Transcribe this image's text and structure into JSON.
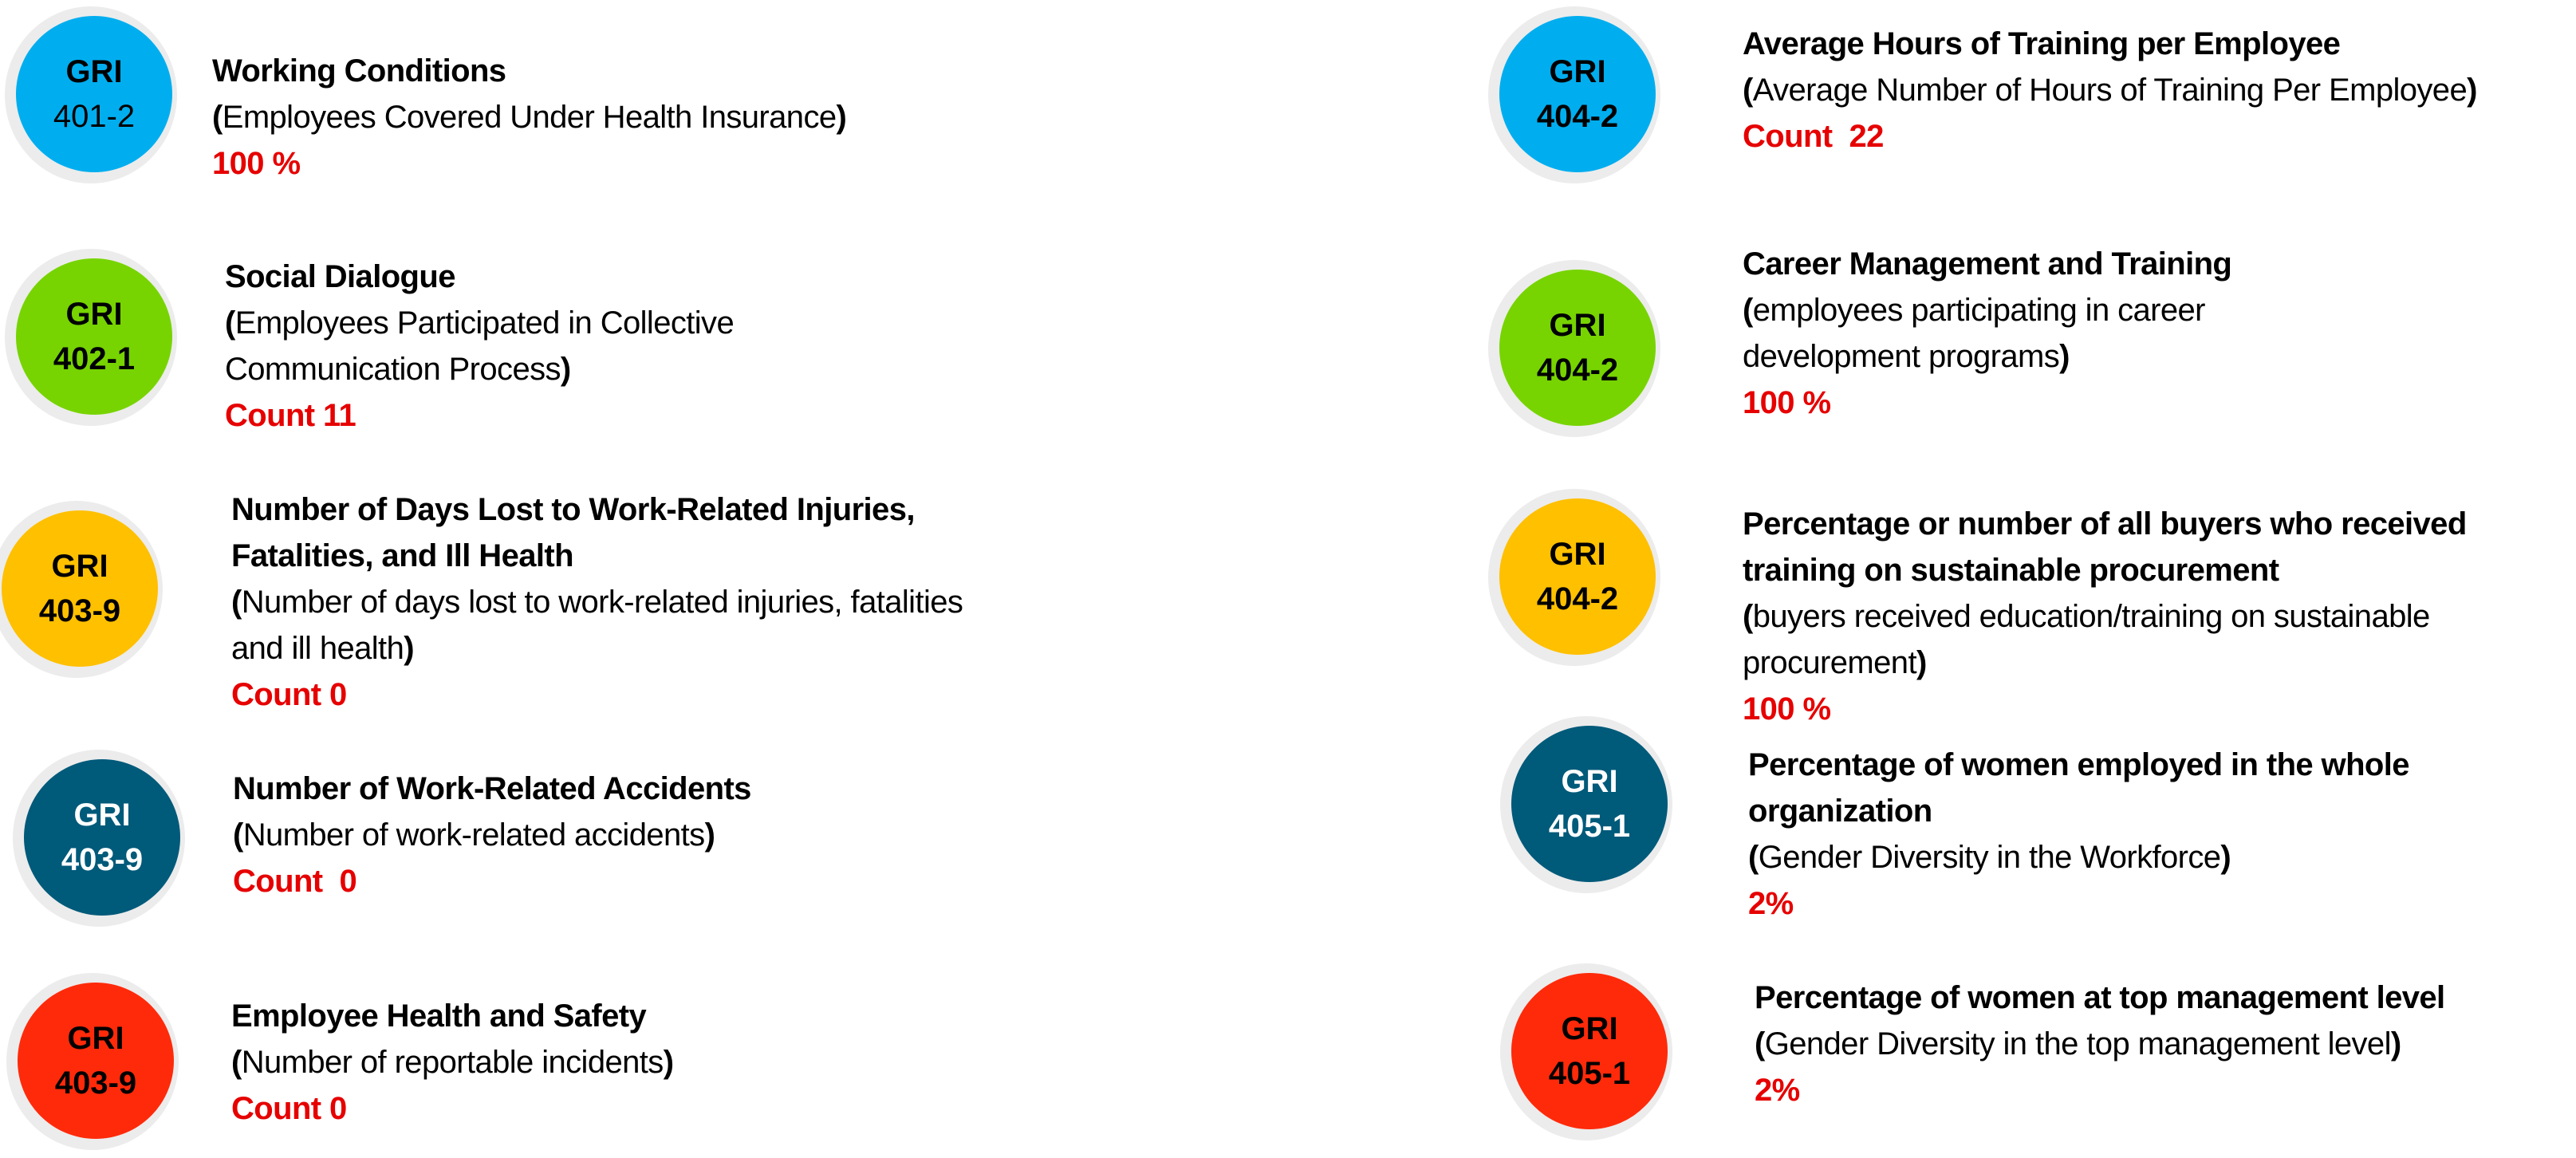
{
  "items": [
    {
      "code_prefix": "GRI",
      "code": "401-2",
      "color": "#00aeef",
      "code_color": "#000000",
      "title": "Working Conditions",
      "description": "(Employees Covered Under Health Insurance)",
      "value": "100 %"
    },
    {
      "code_prefix": "GRI",
      "code": "402-1",
      "color": "#77d400",
      "code_color": "#000000",
      "title": "Social Dialogue",
      "description": "(Employees Participated in Collective Communication Process)",
      "value": "Count 11"
    },
    {
      "code_prefix": "GRI",
      "code": "403-9",
      "color": "#ffc000",
      "code_color": "#000000",
      "title": "Number of Days Lost to Work-Related Injuries, Fatalities, and Ill Health",
      "description": "(Number of days lost to work-related injuries, fatalities and ill health)",
      "value": "Count 0"
    },
    {
      "code_prefix": "GRI",
      "code": "403-9",
      "color": "#005a7a",
      "code_color": "#ffffff",
      "title": "Number of Work-Related Accidents",
      "description": "(Number of work-related accidents)",
      "value": "Count  0"
    },
    {
      "code_prefix": "GRI",
      "code": "403-9",
      "color": "#ff2a0a",
      "code_color": "#000000",
      "title": "Employee Health and Safety",
      "description": "(Number of reportable incidents)",
      "value": "Count 0"
    },
    {
      "code_prefix": "GRI",
      "code": "404-2",
      "color": "#00aeef",
      "code_color": "#000000",
      "title": "Average Hours of Training per Employee",
      "description": "(Average Number of Hours of Training Per Employee)",
      "value": "Count  22"
    },
    {
      "code_prefix": "GRI",
      "code": "404-2",
      "color": "#77d400",
      "code_color": "#000000",
      "title": "Career Management and Training",
      "description": "(employees participating in career development programs)",
      "value": "100 %"
    },
    {
      "code_prefix": "GRI",
      "code": "404-2",
      "color": "#ffc000",
      "code_color": "#000000",
      "title": "Percentage or number of all buyers who received training on sustainable procurement",
      "description": "(buyers received education/training on sustainable procurement)",
      "value": "100 %"
    },
    {
      "code_prefix": "GRI",
      "code": "405-1",
      "color": "#005a7a",
      "code_color": "#ffffff",
      "title": "Percentage of women employed in the whole organization",
      "description": "(Gender Diversity in the Workforce)",
      "value": "2%"
    },
    {
      "code_prefix": "GRI",
      "code": "405-1",
      "color": "#ff2a0a",
      "code_color": "#000000",
      "title": "Percentage of women at top management level",
      "description": "(Gender Diversity in the top management level)",
      "value": "2%"
    }
  ]
}
